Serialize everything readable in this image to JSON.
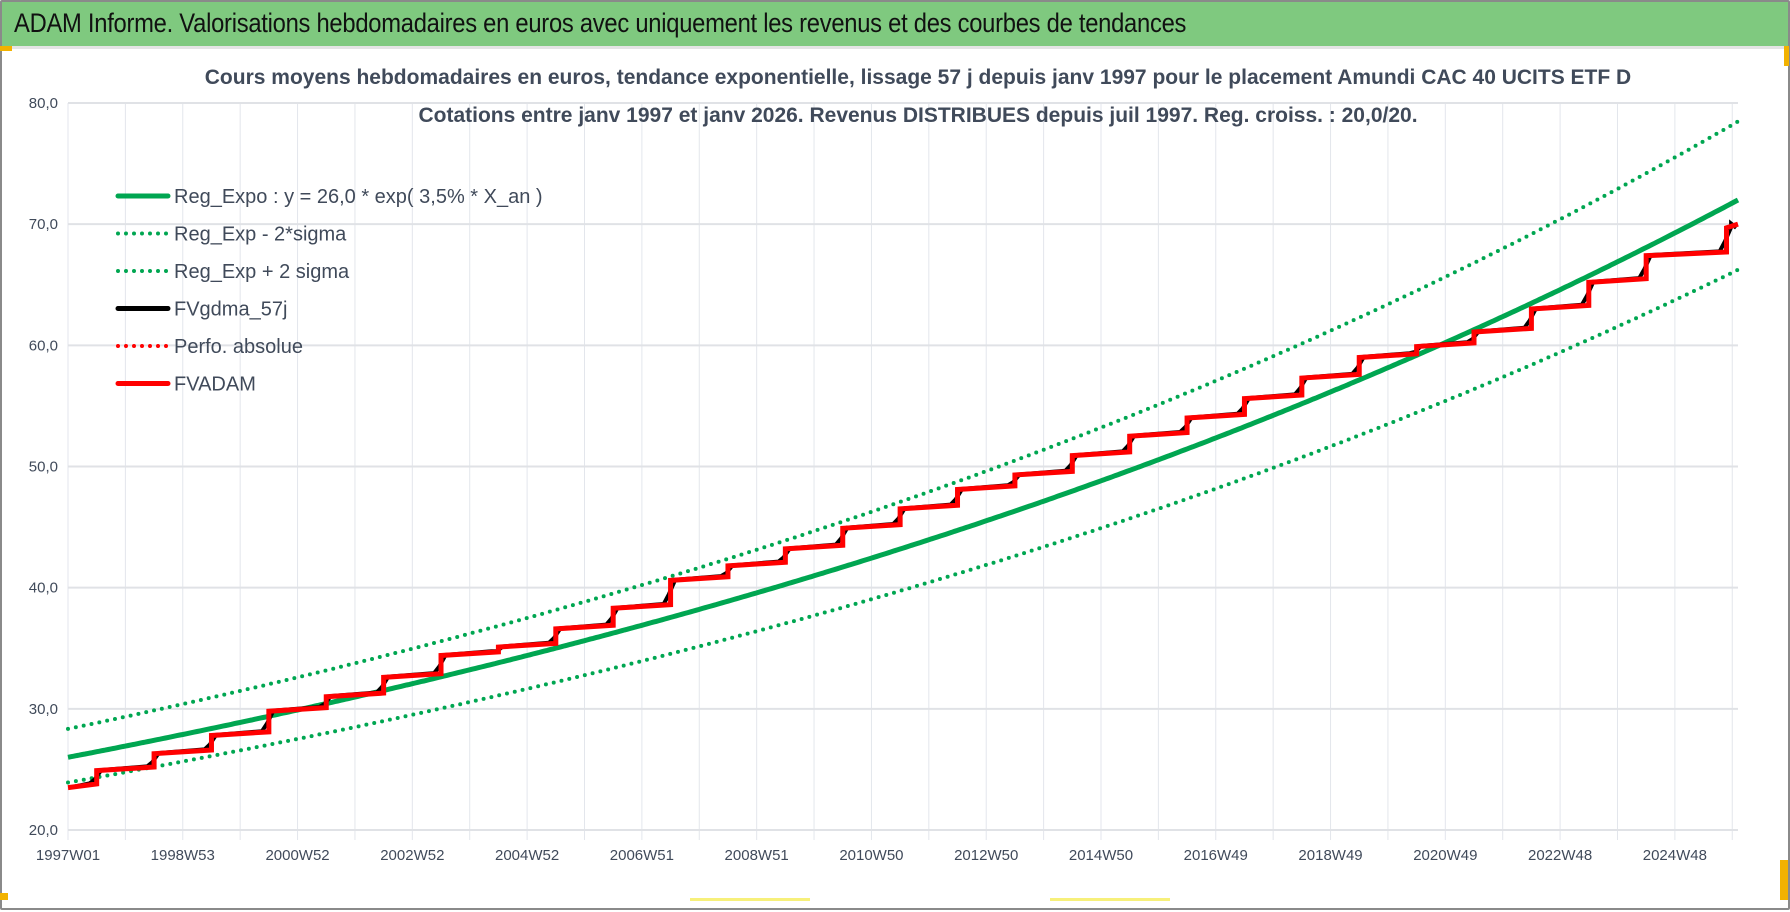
{
  "header": {
    "title": "ADAM Informe. Valorisations hebdomadaires en euros avec uniquement les revenus et des courbes de tendances"
  },
  "chart_data": {
    "type": "line",
    "title": "Cours moyens hebdomadaires en euros, tendance exponentielle, lissage 57 j depuis janv 1997 pour le placement Amundi CAC 40 UCITS ETF D",
    "subtitle": "Cotations entre janv 1997 et janv 2026. Revenus DISTRIBUES depuis juil 1997. Reg. croiss. : 20,0/20.",
    "xlabel": "",
    "ylabel": "",
    "ylim": [
      20,
      80
    ],
    "xlim_years": [
      1997.0,
      2026.1
    ],
    "y_ticks": [
      "20,0",
      "30,0",
      "40,0",
      "50,0",
      "60,0",
      "70,0",
      "80,0"
    ],
    "y_tick_values": [
      20,
      30,
      40,
      50,
      60,
      70,
      80
    ],
    "x_ticks": [
      "1997W01",
      "1998W53",
      "2000W52",
      "2002W52",
      "2004W52",
      "2006W51",
      "2008W51",
      "2010W50",
      "2012W50",
      "2014W50",
      "2016W49",
      "2018W49",
      "2020W49",
      "2022W48",
      "2024W48"
    ],
    "x_tick_years": [
      1997,
      1999,
      2001,
      2003,
      2005,
      2007,
      2009,
      2011,
      2013,
      2015,
      2017,
      2019,
      2021,
      2023,
      2025
    ],
    "grid": true,
    "legend_position": "top-left",
    "regression": {
      "a": 26.0,
      "rate": 0.035,
      "sigma_factor_low": 0.92,
      "sigma_factor_high": 1.09
    },
    "series": [
      {
        "name": "Reg_Expo : y = 26,0 * exp( 3,5% *  X_an )",
        "color": "#00a651",
        "style": "solid"
      },
      {
        "name": "Reg_Exp - 2*sigma",
        "color": "#00a651",
        "style": "dotted"
      },
      {
        "name": "Reg_Exp + 2 sigma",
        "color": "#00a651",
        "style": "dotted"
      },
      {
        "name": "FVgdma_57j",
        "color": "#000000",
        "style": "solid"
      },
      {
        "name": "Perfo. absolue",
        "color": "#ff0000",
        "style": "dotted"
      },
      {
        "name": "FVADAM",
        "color": "#ff0000",
        "style": "solid",
        "x_years": [
          1997.0,
          1997.5,
          1998.5,
          1999.5,
          2000.5,
          2001.5,
          2002.5,
          2003.5,
          2004.5,
          2005.5,
          2006.5,
          2007.5,
          2008.5,
          2009.5,
          2010.5,
          2011.5,
          2012.5,
          2013.5,
          2014.5,
          2015.5,
          2016.5,
          2017.5,
          2018.5,
          2019.5,
          2020.5,
          2021.5,
          2022.5,
          2023.5,
          2024.5,
          2025.9
        ],
        "values": [
          23.5,
          24.9,
          26.3,
          27.8,
          29.8,
          31.0,
          32.6,
          34.4,
          35.1,
          36.6,
          38.3,
          40.6,
          41.8,
          43.2,
          44.9,
          46.5,
          48.1,
          49.3,
          50.9,
          52.5,
          54.0,
          55.6,
          57.3,
          59.0,
          59.9,
          61.1,
          63.0,
          65.2,
          67.4,
          69.7
        ]
      }
    ]
  }
}
